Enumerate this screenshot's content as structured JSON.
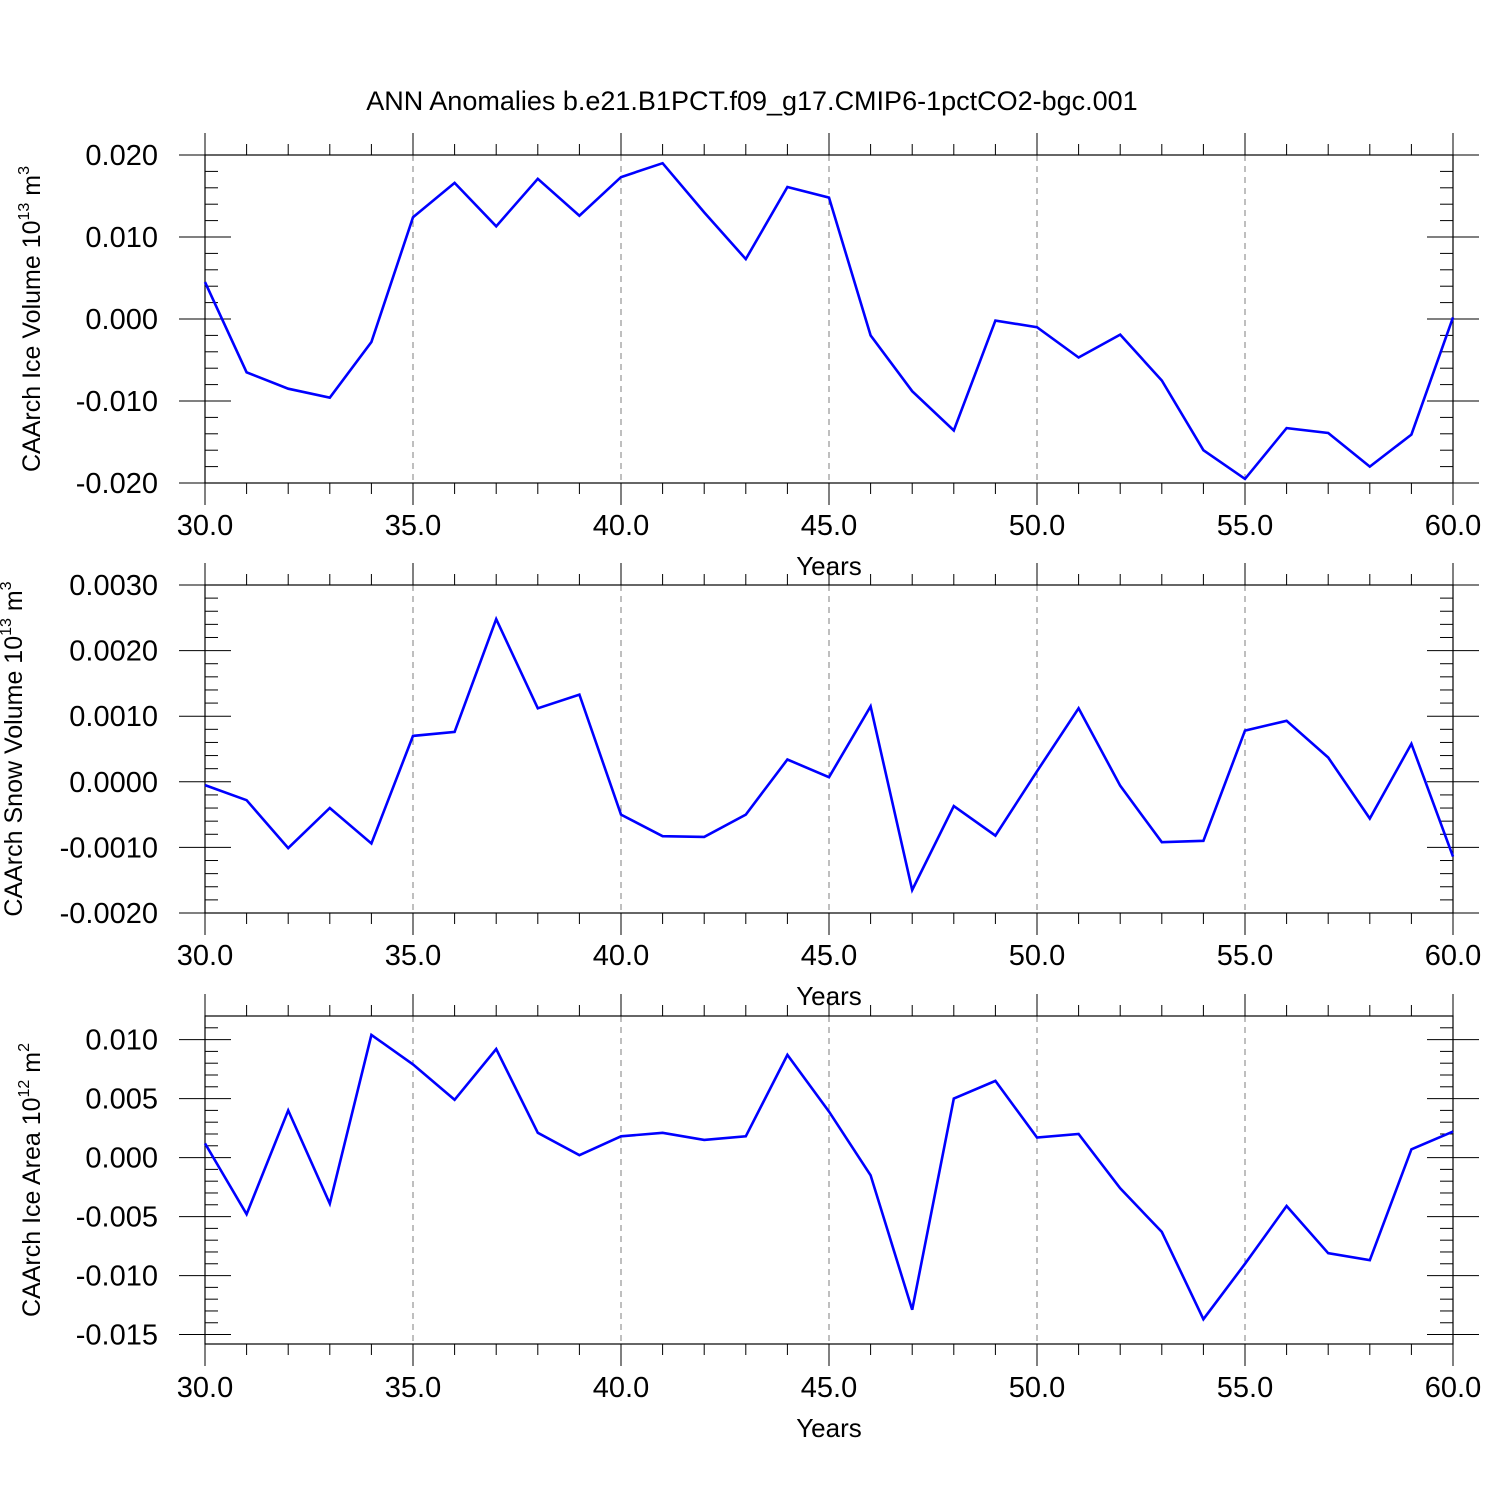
{
  "figure": {
    "title": "ANN Anomalies b.e21.B1PCT.f09_g17.CMIP6-1pctCO2-bgc.001"
  },
  "colors": {
    "line": "#0000ff",
    "axes": "#000000",
    "grid": "#7f7f7f",
    "background": "#ffffff"
  },
  "chart_data": [
    {
      "type": "line",
      "xlabel": "Years",
      "ylabel_main": "CAArch Ice Volume 10",
      "ylabel_exp": "13",
      "ylabel_unit": " m",
      "ylabel_unit_exp": "3",
      "xlim": [
        30,
        60
      ],
      "ylim": [
        -0.02,
        0.02
      ],
      "xticks": [
        30,
        35,
        40,
        45,
        50,
        55,
        60
      ],
      "xtick_labels": [
        "30.0",
        "35.0",
        "40.0",
        "45.0",
        "50.0",
        "55.0",
        "60.0"
      ],
      "yticks": [
        -0.02,
        -0.01,
        0.0,
        0.01,
        0.02
      ],
      "ytick_labels": [
        "-0.020",
        "-0.010",
        "0.000",
        "0.010",
        "0.020"
      ],
      "grid": "vertical dashed at major x ticks",
      "series": [
        {
          "x": [
            30,
            31,
            32,
            33,
            34,
            35,
            36,
            37,
            38,
            39,
            40,
            41,
            42,
            43,
            44,
            45,
            46,
            47,
            48,
            49,
            50,
            51,
            52,
            53,
            54,
            55,
            56,
            57,
            58,
            59,
            60
          ],
          "values": [
            0.0045,
            -0.0065,
            -0.0085,
            -0.0096,
            -0.0028,
            0.0124,
            0.0166,
            0.0113,
            0.0171,
            0.0126,
            0.0173,
            0.019,
            0.013,
            0.0073,
            0.0161,
            0.0148,
            -0.002,
            -0.0088,
            -0.0136,
            -0.0002,
            -0.001,
            -0.0047,
            -0.0019,
            -0.0075,
            -0.016,
            -0.0195,
            -0.0133,
            -0.0139,
            -0.018,
            -0.0141,
            0.0002
          ]
        }
      ]
    },
    {
      "type": "line",
      "xlabel": "Years",
      "ylabel_main": "CAArch Snow Volume 10",
      "ylabel_exp": "13",
      "ylabel_unit": " m",
      "ylabel_unit_exp": "3",
      "xlim": [
        30,
        60
      ],
      "ylim": [
        -0.002,
        0.003
      ],
      "xticks": [
        30,
        35,
        40,
        45,
        50,
        55,
        60
      ],
      "xtick_labels": [
        "30.0",
        "35.0",
        "40.0",
        "45.0",
        "50.0",
        "55.0",
        "60.0"
      ],
      "yticks": [
        -0.002,
        -0.001,
        0.0,
        0.001,
        0.002,
        0.003
      ],
      "ytick_labels": [
        "-0.0020",
        "-0.0010",
        "0.0000",
        "0.0010",
        "0.0020",
        "0.0030"
      ],
      "grid": "vertical dashed at major x ticks",
      "series": [
        {
          "x": [
            30,
            31,
            32,
            33,
            34,
            35,
            36,
            37,
            38,
            39,
            40,
            41,
            42,
            43,
            44,
            45,
            46,
            47,
            48,
            49,
            50,
            51,
            52,
            53,
            54,
            55,
            56,
            57,
            58,
            59,
            60
          ],
          "values": [
            -5e-05,
            -0.00028,
            -0.00101,
            -0.0004,
            -0.00094,
            0.0007,
            0.00076,
            0.00248,
            0.00112,
            0.00133,
            -0.0005,
            -0.00083,
            -0.00084,
            -0.0005,
            0.00034,
            7e-05,
            0.00115,
            -0.00165,
            -0.00037,
            -0.00082,
            0.00016,
            0.00112,
            -6e-05,
            -0.00092,
            -0.0009,
            0.00078,
            0.00093,
            0.00037,
            -0.00056,
            0.00058,
            -0.00114
          ]
        }
      ]
    },
    {
      "type": "line",
      "xlabel": "Years",
      "ylabel_main": "CAArch Ice Area 10",
      "ylabel_exp": "12",
      "ylabel_unit": " m",
      "ylabel_unit_exp": "2",
      "xlim": [
        30,
        60
      ],
      "ylim": [
        -0.0158,
        0.012
      ],
      "xticks": [
        30,
        35,
        40,
        45,
        50,
        55,
        60
      ],
      "xtick_labels": [
        "30.0",
        "35.0",
        "40.0",
        "45.0",
        "50.0",
        "55.0",
        "60.0"
      ],
      "yticks": [
        -0.015,
        -0.01,
        -0.005,
        0.0,
        0.005,
        0.01
      ],
      "ytick_labels": [
        "-0.015",
        "-0.010",
        "-0.005",
        "0.000",
        "0.005",
        "0.010"
      ],
      "grid": "vertical dashed at major x ticks",
      "series": [
        {
          "x": [
            30,
            31,
            32,
            33,
            34,
            35,
            36,
            37,
            38,
            39,
            40,
            41,
            42,
            43,
            44,
            45,
            46,
            47,
            48,
            49,
            50,
            51,
            52,
            53,
            54,
            55,
            56,
            57,
            58,
            59,
            60
          ],
          "values": [
            0.0012,
            -0.0048,
            0.004,
            -0.0039,
            0.0104,
            0.0079,
            0.0049,
            0.0092,
            0.0021,
            0.0002,
            0.0018,
            0.0021,
            0.0015,
            0.0018,
            0.0087,
            0.0039,
            -0.0015,
            -0.0129,
            0.005,
            0.0065,
            0.0017,
            0.002,
            -0.0026,
            -0.0063,
            -0.0137,
            -0.009,
            -0.0041,
            -0.0081,
            -0.0087,
            0.0007,
            0.0022
          ]
        }
      ]
    }
  ]
}
